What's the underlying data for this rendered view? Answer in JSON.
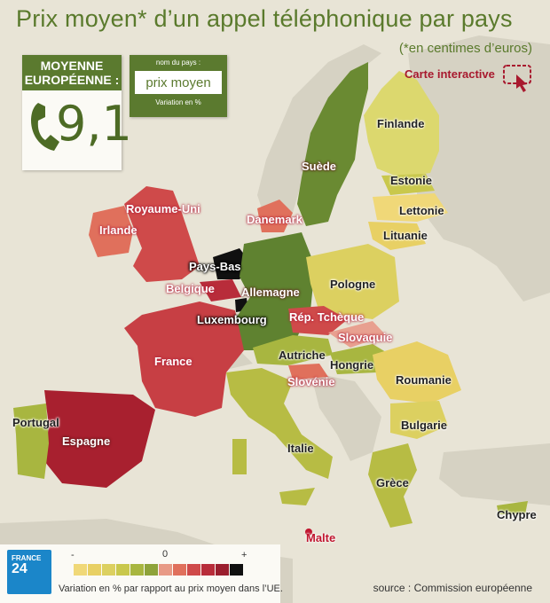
{
  "header": {
    "title": "Prix moyen* d’un appel téléphonique par pays",
    "subtitle": "(*en centimes d’euros)"
  },
  "average_box": {
    "label": "MOYENNE EUROPÉENNE :",
    "value": "9,1",
    "icon": "phone-icon"
  },
  "legend_key": {
    "top": "nom du pays :",
    "middle": "prix moyen",
    "bottom": "Variation en %"
  },
  "interactive": {
    "label": "Carte interactive",
    "icon": "touch-pointer-icon"
  },
  "colors": {
    "scale": [
      "#f0d878",
      "#e8d064",
      "#dcd060",
      "#c9c84c",
      "#a8b640",
      "#8ea33a",
      "#e89a86",
      "#e0705c",
      "#cf4a4a",
      "#b82c3a",
      "#9a1e2e",
      "#101010"
    ],
    "accent": "#5a7a2c",
    "interactive": "#a8192e",
    "sea": "#e8e4d6",
    "land_outside": "#d6d2c3"
  },
  "countries": [
    {
      "name": "Finlande",
      "style": "dark"
    },
    {
      "name": "Suède",
      "style": "light"
    },
    {
      "name": "Estonie",
      "style": "dark"
    },
    {
      "name": "Lettonie",
      "style": "dark"
    },
    {
      "name": "Lituanie",
      "style": "dark"
    },
    {
      "name": "Royaume-Uni",
      "style": "pink"
    },
    {
      "name": "Irlande",
      "style": "pink"
    },
    {
      "name": "Danemark",
      "style": "pink"
    },
    {
      "name": "Pays-Bas",
      "style": "black"
    },
    {
      "name": "Belgique",
      "style": "pink"
    },
    {
      "name": "Allemagne",
      "style": "light"
    },
    {
      "name": "Pologne",
      "style": "dark"
    },
    {
      "name": "Luxembourg",
      "style": "black"
    },
    {
      "name": "Rép. Tchèque",
      "style": "pink"
    },
    {
      "name": "Slovaquie",
      "style": "pink"
    },
    {
      "name": "France",
      "style": "pink"
    },
    {
      "name": "Autriche",
      "style": "dark"
    },
    {
      "name": "Hongrie",
      "style": "dark"
    },
    {
      "name": "Slovénie",
      "style": "pink"
    },
    {
      "name": "Roumanie",
      "style": "dark"
    },
    {
      "name": "Portugal",
      "style": "dark"
    },
    {
      "name": "Espagne",
      "style": "light"
    },
    {
      "name": "Italie",
      "style": "dark"
    },
    {
      "name": "Bulgarie",
      "style": "dark"
    },
    {
      "name": "Grèce",
      "style": "dark"
    },
    {
      "name": "Chypre",
      "style": "dark"
    },
    {
      "name": "Malte",
      "style": "red"
    }
  ],
  "legend": {
    "minus": "-",
    "zero": "0",
    "plus": "+",
    "caption": "Variation en % par rapport au prix moyen dans l’UE."
  },
  "logo": {
    "line1": "FRANCE",
    "line2": "24"
  },
  "source": "source : Commission européenne"
}
